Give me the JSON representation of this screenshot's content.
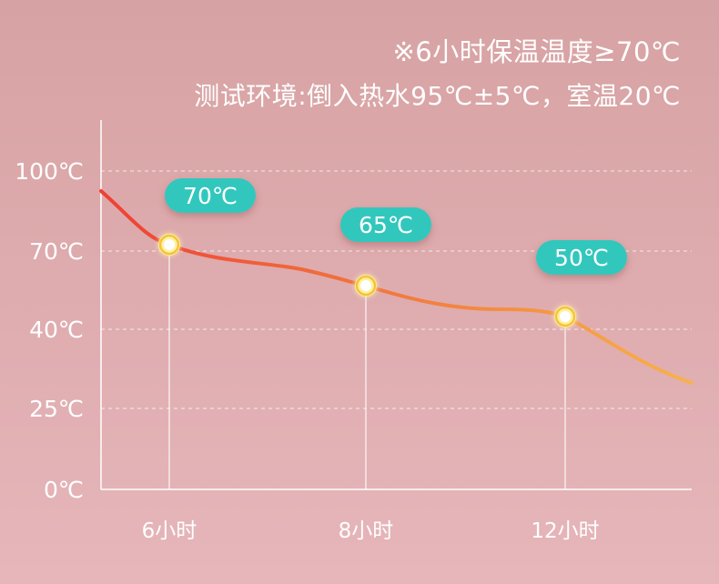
{
  "notes": {
    "line1": "※6小时保温温度≥70℃",
    "line2": "测试环境:倒入热水95℃±5℃，室温20℃"
  },
  "colors": {
    "curve_start": "#ee4034",
    "curve_mid": "#f27a3e",
    "curve_end": "#f7b24c",
    "label_bg": "#33c7bd",
    "marker_ring": "#fff2a0",
    "marker_fill": "#f5c33b"
  },
  "chart_data": {
    "type": "line",
    "x_categories": [
      "6小时",
      "8小时",
      "12小时"
    ],
    "y_ticks": [
      "100℃",
      "70℃",
      "40℃",
      "25℃",
      "0℃"
    ],
    "grid": "dashed horizontal lines at each y tick",
    "series": [
      {
        "points": [
          {
            "x": "6小时",
            "y": 70,
            "label": "70℃"
          },
          {
            "x": "8小时",
            "y": 65,
            "label": "65℃"
          },
          {
            "x": "12小时",
            "y": 50,
            "label": "50℃"
          }
        ]
      }
    ]
  }
}
